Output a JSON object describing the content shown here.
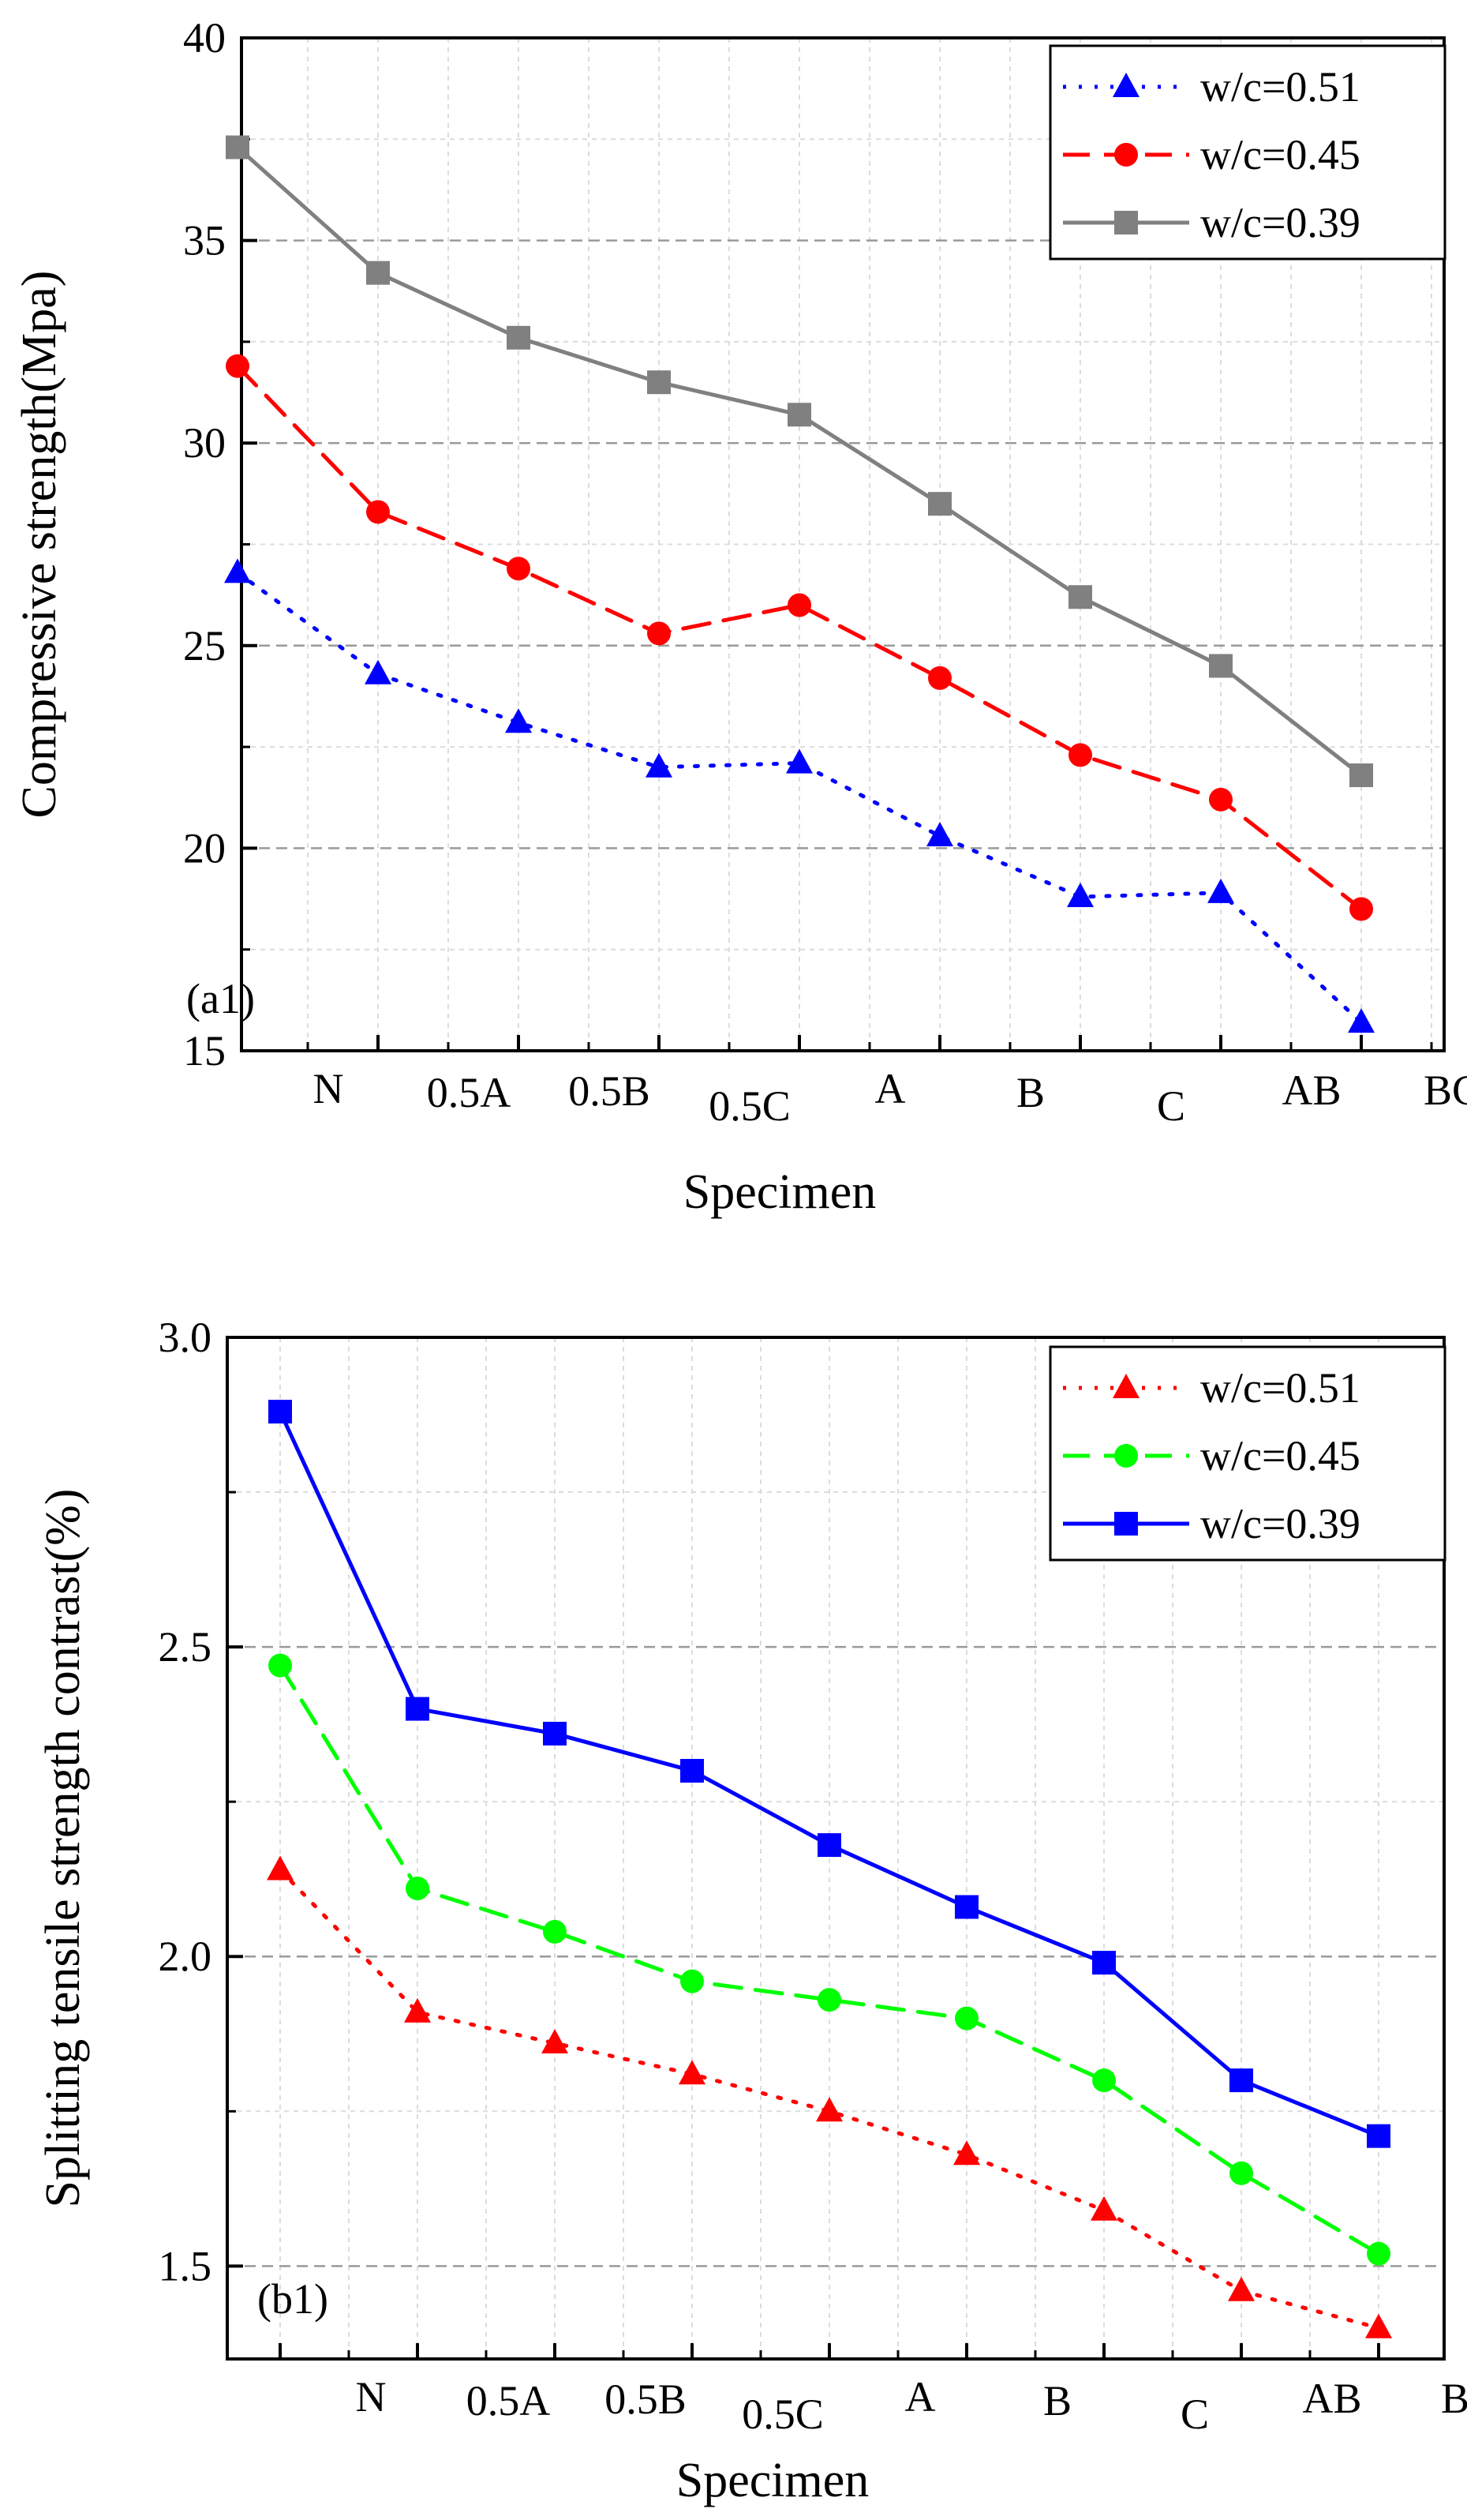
{
  "chart_data": [
    {
      "type": "line",
      "panel_label": "(a1)",
      "xlabel": "Specimen",
      "ylabel": "Compressive strength(Mpa)",
      "ylim": [
        15,
        40
      ],
      "yticks": [
        15,
        20,
        25,
        30,
        35,
        40
      ],
      "category_labels": [
        "N",
        "0.5A",
        "0.5B",
        "0.5C",
        "A",
        "B",
        "C",
        "AB",
        "BC"
      ],
      "grid": true,
      "legend_position": "top-right",
      "series": [
        {
          "name": "w/c=0.51",
          "color": "#0000ff",
          "marker": "triangle",
          "dash": "dot",
          "values": [
            26.8,
            24.3,
            23.1,
            22.0,
            22.1,
            20.3,
            18.8,
            18.9,
            15.7
          ]
        },
        {
          "name": "w/c=0.45",
          "color": "#ff0000",
          "marker": "circle",
          "dash": "dash",
          "values": [
            31.9,
            28.3,
            26.9,
            25.3,
            26.0,
            24.2,
            22.3,
            21.2,
            18.5
          ]
        },
        {
          "name": "w/c=0.39",
          "color": "#808080",
          "marker": "square",
          "dash": "solid",
          "values": [
            37.3,
            34.2,
            32.6,
            31.5,
            30.7,
            28.5,
            26.2,
            24.5,
            21.8
          ]
        }
      ]
    },
    {
      "type": "line",
      "panel_label": "(b1)",
      "xlabel": "Specimen",
      "ylabel": "Splitting tensile strength contrast(%)",
      "ylim": [
        1.35,
        3.0
      ],
      "yticks": [
        1.5,
        2.0,
        2.5,
        3.0
      ],
      "category_labels": [
        "N",
        "0.5A",
        "0.5B",
        "0.5C",
        "A",
        "B",
        "C",
        "AB",
        "BC"
      ],
      "grid": true,
      "legend_position": "top-right",
      "series": [
        {
          "name": "w/c=0.51",
          "color": "#ff0000",
          "marker": "triangle",
          "dash": "dot",
          "values": [
            2.14,
            1.91,
            1.86,
            1.81,
            1.75,
            1.68,
            1.59,
            1.46,
            1.4
          ]
        },
        {
          "name": "w/c=0.45",
          "color": "#00ff00",
          "marker": "circle",
          "dash": "dash",
          "values": [
            2.47,
            2.11,
            2.04,
            1.96,
            1.93,
            1.9,
            1.8,
            1.65,
            1.52
          ]
        },
        {
          "name": "w/c=0.39",
          "color": "#0000ff",
          "marker": "square",
          "dash": "solid",
          "values": [
            2.88,
            2.4,
            2.36,
            2.3,
            2.18,
            2.08,
            1.99,
            1.8,
            1.71
          ]
        }
      ]
    }
  ]
}
